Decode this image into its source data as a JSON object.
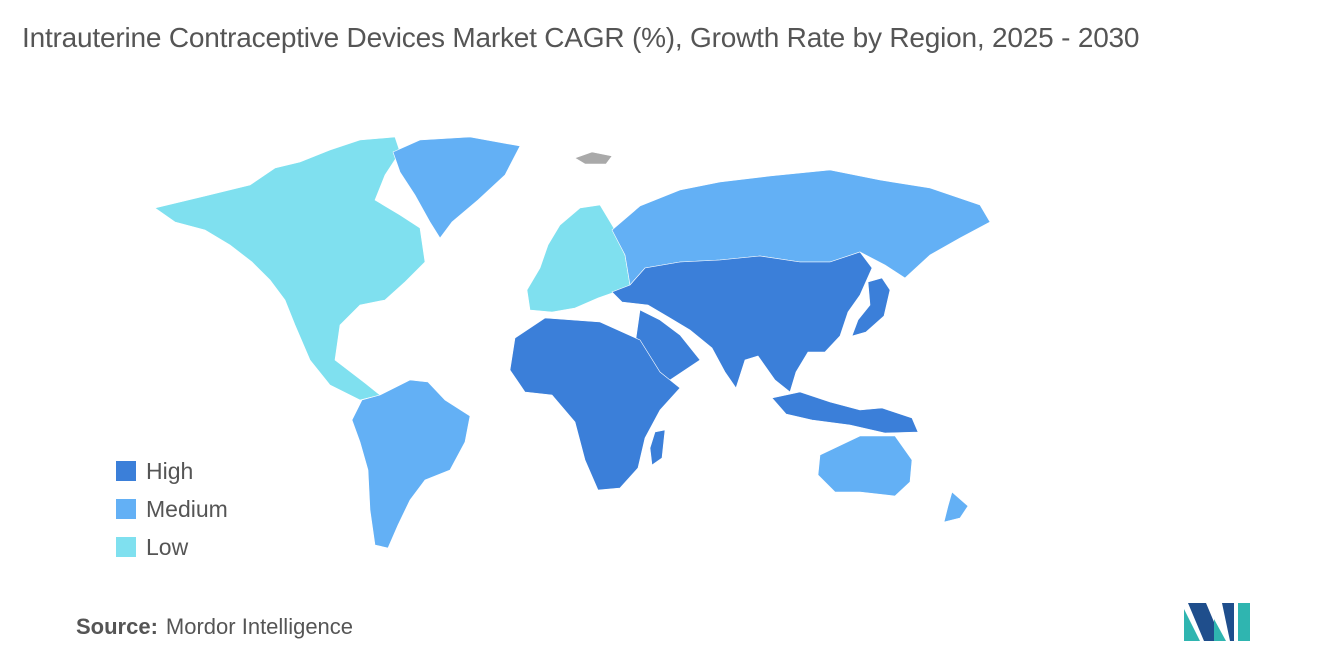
{
  "title": "Intrauterine Contraceptive Devices Market CAGR (%), Growth Rate by Region, 2025 - 2030",
  "legend": [
    {
      "label": "High",
      "color": "#3b7fd9"
    },
    {
      "label": "Medium",
      "color": "#63b0f5"
    },
    {
      "label": "Low",
      "color": "#7fe0ef"
    }
  ],
  "regions": [
    {
      "name": "North America",
      "level": "Low"
    },
    {
      "name": "Europe",
      "level": "Low"
    },
    {
      "name": "Greenland",
      "level": "Medium"
    },
    {
      "name": "South America",
      "level": "Medium"
    },
    {
      "name": "Russia",
      "level": "Medium"
    },
    {
      "name": "Australia and New Zealand",
      "level": "Medium"
    },
    {
      "name": "Asia",
      "level": "High"
    },
    {
      "name": "Middle East",
      "level": "High"
    },
    {
      "name": "Africa",
      "level": "High"
    }
  ],
  "colors": {
    "no_data": "#a9a9a9",
    "text": "#555555"
  },
  "source": {
    "label": "Source:",
    "value": "Mordor Intelligence"
  },
  "logo_icon": "mordor-intelligence-logo-icon"
}
